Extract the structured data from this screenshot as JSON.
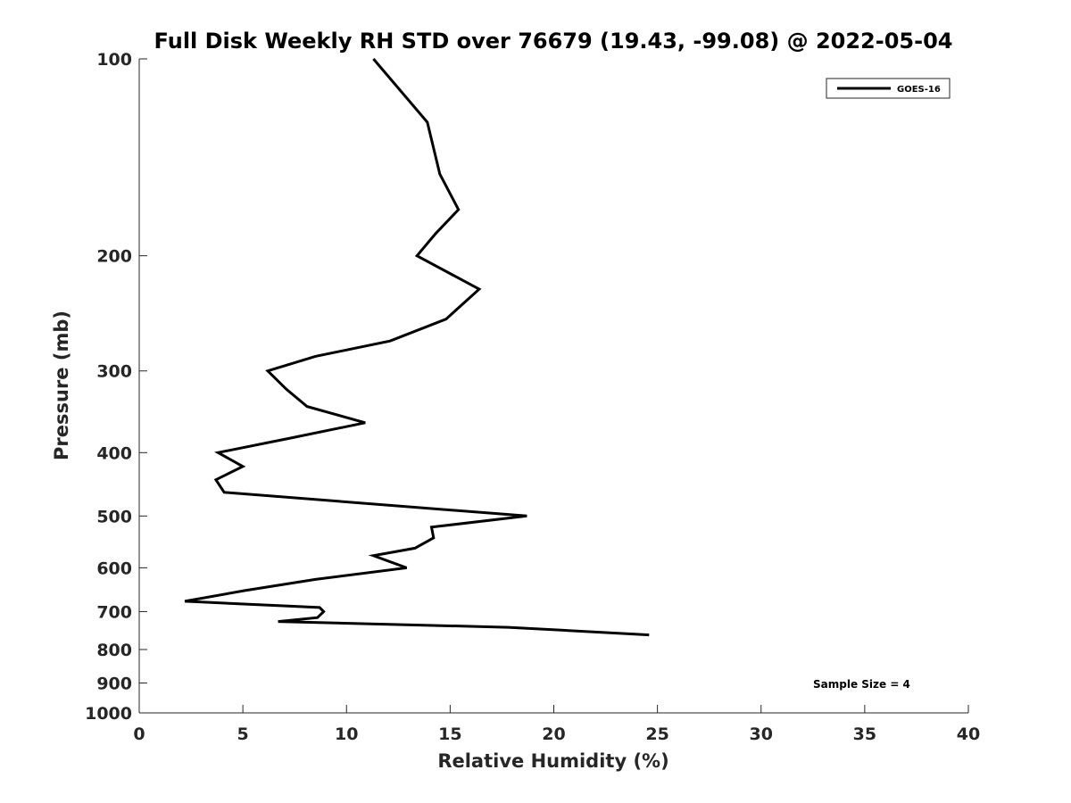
{
  "chart_data": {
    "type": "line",
    "title": "Full Disk Weekly RH STD over 76679 (19.43, -99.08) @ 2022-05-04",
    "xlabel": "Relative Humidity (%)",
    "ylabel": "Pressure (mb)",
    "xlim": [
      0,
      40
    ],
    "ylim": [
      100,
      1000
    ],
    "y_scale": "log",
    "y_reversed": true,
    "x_ticks": [
      0,
      5,
      10,
      15,
      20,
      25,
      30,
      35,
      40
    ],
    "x_tick_labels": [
      "0",
      "5",
      "10",
      "15",
      "20",
      "25",
      "30",
      "35",
      "40"
    ],
    "y_ticks": [
      100,
      200,
      300,
      400,
      500,
      600,
      700,
      800,
      900,
      1000
    ],
    "y_tick_labels": [
      "100",
      "200",
      "300",
      "400",
      "500",
      "600",
      "700",
      "800",
      "900",
      "1000"
    ],
    "grid": false,
    "legend_position": "top-right",
    "series": [
      {
        "name": "GOES-16",
        "color": "#000000",
        "x": [
          11.3,
          13.9,
          14.5,
          15.4,
          14.3,
          13.4,
          16.4,
          14.8,
          12.1,
          8.5,
          6.2,
          7.1,
          8.1,
          10.9,
          7.3,
          3.8,
          5.0,
          3.7,
          4.1,
          18.7,
          14.1,
          14.2,
          13.3,
          11.3,
          12.9,
          8.5,
          5.1,
          2.2,
          8.7,
          8.9,
          8.6,
          6.7,
          17.8,
          24.6
        ],
        "y": [
          100,
          125,
          150,
          170,
          185,
          200,
          225,
          250,
          270,
          285,
          300,
          320,
          340,
          360,
          380,
          400,
          420,
          440,
          460,
          500,
          520,
          540,
          560,
          575,
          600,
          625,
          650,
          675,
          690,
          700,
          715,
          725,
          740,
          760
        ]
      }
    ],
    "legend": [
      "GOES-16"
    ],
    "annotations": [
      {
        "text": "Sample Size = 4",
        "position": "bottom-right"
      }
    ]
  }
}
